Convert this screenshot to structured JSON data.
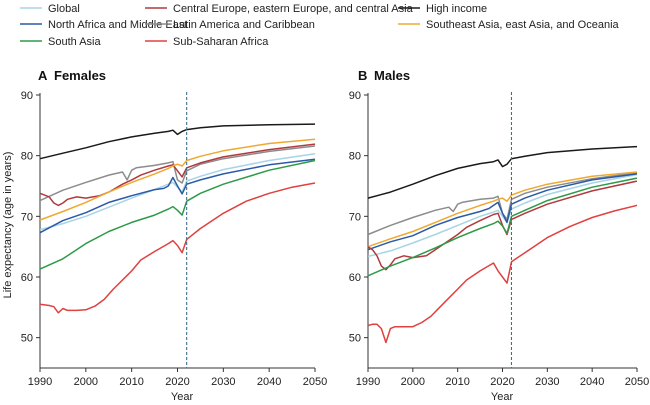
{
  "legend": [
    {
      "label": "Global",
      "color": "#a8d4e6"
    },
    {
      "label": "Central Europe, eastern Europe, and central Asia",
      "color": "#b03a3e"
    },
    {
      "label": "High income",
      "color": "#1a1a1a"
    },
    {
      "label": "North Africa and Middle East",
      "color": "#2b5aa6"
    },
    {
      "label": "Latin America and Caribbean",
      "color": "#8c8c8c"
    },
    {
      "label": "Southeast Asia, east Asia, and Oceania",
      "color": "#f0a830"
    },
    {
      "label": "South Asia",
      "color": "#2e9a48"
    },
    {
      "label": "Sub-Saharan Africa",
      "color": "#e04040"
    }
  ],
  "y_axis_label": "Life expectancy (age in years)",
  "x_axis_label": "Year",
  "chart_data": [
    {
      "type": "line",
      "panel_letter": "A",
      "title": "Females",
      "xlim": [
        1990,
        2050
      ],
      "ylim": [
        45,
        90
      ],
      "xticks": [
        1990,
        2000,
        2010,
        2020,
        2030,
        2040,
        2050
      ],
      "yticks": [
        50,
        60,
        70,
        80,
        90
      ],
      "forecast_start": 2022,
      "series": [
        {
          "name": "High income",
          "color": "#1a1a1a",
          "x": [
            1990,
            1995,
            2000,
            2005,
            2010,
            2015,
            2018,
            2019,
            2020,
            2021,
            2022,
            2025,
            2030,
            2040,
            2050
          ],
          "y": [
            79.5,
            80.4,
            81.3,
            82.3,
            83.1,
            83.7,
            84.0,
            84.2,
            83.5,
            84.0,
            84.3,
            84.6,
            84.9,
            85.1,
            85.2
          ]
        },
        {
          "name": "Latin America and Caribbean",
          "color": "#8c8c8c",
          "x": [
            1990,
            1995,
            2000,
            2005,
            2008,
            2009,
            2010,
            2011,
            2015,
            2018,
            2019,
            2020,
            2021,
            2022,
            2025,
            2030,
            2040,
            2050
          ],
          "y": [
            72.6,
            74.3,
            75.6,
            76.8,
            77.3,
            76.0,
            77.6,
            78.0,
            78.4,
            78.8,
            79.0,
            76.0,
            75.5,
            77.5,
            78.6,
            79.5,
            80.7,
            81.6
          ]
        },
        {
          "name": "Central Europe, eastern Europe, and central Asia",
          "color": "#b03a3e",
          "x": [
            1990,
            1991,
            1992,
            1993,
            1994,
            1995,
            1996,
            1998,
            2000,
            2003,
            2005,
            2008,
            2010,
            2012,
            2015,
            2018,
            2019,
            2020,
            2021,
            2022,
            2025,
            2030,
            2040,
            2050
          ],
          "y": [
            73.8,
            73.5,
            73.2,
            72.2,
            71.8,
            72.2,
            72.8,
            73.2,
            73.0,
            73.4,
            74.0,
            75.3,
            76.0,
            76.8,
            77.6,
            78.3,
            78.5,
            77.5,
            76.5,
            78.0,
            78.8,
            79.8,
            81.0,
            81.9
          ]
        },
        {
          "name": "Southeast Asia, east Asia, and Oceania",
          "color": "#f0a830",
          "x": [
            1990,
            1995,
            2000,
            2005,
            2010,
            2015,
            2018,
            2019,
            2020,
            2021,
            2022,
            2025,
            2030,
            2040,
            2050
          ],
          "y": [
            69.4,
            70.8,
            72.3,
            74.0,
            75.6,
            77.0,
            77.9,
            78.3,
            78.6,
            78.3,
            79.2,
            79.9,
            80.8,
            82.0,
            82.7
          ]
        },
        {
          "name": "Global",
          "color": "#a8d4e6",
          "x": [
            1990,
            1995,
            2000,
            2005,
            2010,
            2015,
            2018,
            2019,
            2020,
            2021,
            2022,
            2025,
            2030,
            2040,
            2050
          ],
          "y": [
            67.8,
            68.8,
            70.0,
            71.5,
            73.0,
            74.4,
            75.3,
            75.6,
            74.8,
            74.0,
            75.8,
            76.6,
            77.7,
            79.2,
            80.3
          ]
        },
        {
          "name": "North Africa and Middle East",
          "color": "#2b5aa6",
          "x": [
            1990,
            1995,
            2000,
            2005,
            2010,
            2015,
            2017,
            2018,
            2019,
            2020,
            2021,
            2022,
            2025,
            2030,
            2040,
            2050
          ],
          "y": [
            67.3,
            69.3,
            70.6,
            72.3,
            73.4,
            74.4,
            74.6,
            75.0,
            76.4,
            75.0,
            73.7,
            75.3,
            76.0,
            77.0,
            78.5,
            79.4
          ]
        },
        {
          "name": "South Asia",
          "color": "#2e9a48",
          "x": [
            1990,
            1995,
            2000,
            2005,
            2010,
            2015,
            2018,
            2019,
            2020,
            2021,
            2022,
            2025,
            2030,
            2040,
            2050
          ],
          "y": [
            61.3,
            63.0,
            65.5,
            67.5,
            69.0,
            70.2,
            71.2,
            71.6,
            71.0,
            70.2,
            72.5,
            73.8,
            75.3,
            77.6,
            79.2
          ]
        },
        {
          "name": "Sub-Saharan Africa",
          "color": "#e04040",
          "x": [
            1990,
            1992,
            1993,
            1994,
            1995,
            1996,
            1998,
            2000,
            2002,
            2004,
            2006,
            2008,
            2010,
            2012,
            2015,
            2018,
            2019,
            2020,
            2021,
            2022,
            2025,
            2030,
            2035,
            2040,
            2045,
            2050
          ],
          "y": [
            55.5,
            55.3,
            55.1,
            54.1,
            54.8,
            54.5,
            54.5,
            54.6,
            55.2,
            56.3,
            58.0,
            59.5,
            61.0,
            62.8,
            64.2,
            65.5,
            66.0,
            65.2,
            64.0,
            66.2,
            68.0,
            70.5,
            72.5,
            73.8,
            74.8,
            75.5
          ]
        }
      ]
    },
    {
      "type": "line",
      "panel_letter": "B",
      "title": "Males",
      "xlim": [
        1990,
        2050
      ],
      "ylim": [
        45,
        90
      ],
      "xticks": [
        1990,
        2000,
        2010,
        2020,
        2030,
        2040,
        2050
      ],
      "yticks": [
        50,
        60,
        70,
        80,
        90
      ],
      "forecast_start": 2022,
      "series": [
        {
          "name": "High income",
          "color": "#1a1a1a",
          "x": [
            1990,
            1995,
            2000,
            2005,
            2010,
            2015,
            2018,
            2019,
            2020,
            2021,
            2022,
            2025,
            2030,
            2040,
            2050
          ],
          "y": [
            73.0,
            74.0,
            75.3,
            76.7,
            77.9,
            78.7,
            79.0,
            79.3,
            78.2,
            78.6,
            79.5,
            79.9,
            80.5,
            81.1,
            81.5
          ]
        },
        {
          "name": "Latin America and Caribbean",
          "color": "#8c8c8c",
          "x": [
            1990,
            1995,
            2000,
            2005,
            2008,
            2009,
            2010,
            2011,
            2015,
            2018,
            2019,
            2020,
            2021,
            2022,
            2025,
            2030,
            2040,
            2050
          ],
          "y": [
            67.0,
            68.5,
            69.8,
            71.0,
            71.5,
            70.8,
            72.0,
            72.3,
            72.8,
            73.0,
            73.3,
            70.5,
            69.5,
            72.8,
            73.8,
            74.8,
            76.2,
            77.2
          ]
        },
        {
          "name": "Southeast Asia, east Asia, and Oceania",
          "color": "#f0a830",
          "x": [
            1990,
            1995,
            2000,
            2005,
            2010,
            2015,
            2018,
            2019,
            2020,
            2021,
            2022,
            2025,
            2030,
            2040,
            2050
          ],
          "y": [
            65.0,
            66.3,
            67.5,
            69.0,
            70.5,
            71.8,
            72.5,
            72.8,
            73.0,
            72.5,
            73.5,
            74.3,
            75.3,
            76.6,
            77.3
          ]
        },
        {
          "name": "Global",
          "color": "#a8d4e6",
          "x": [
            1990,
            1995,
            2000,
            2005,
            2010,
            2015,
            2018,
            2019,
            2020,
            2021,
            2022,
            2025,
            2030,
            2040,
            2050
          ],
          "y": [
            63.4,
            64.3,
            65.6,
            67.0,
            68.5,
            70.0,
            70.7,
            71.0,
            70.0,
            69.0,
            71.2,
            72.2,
            73.6,
            75.5,
            76.9
          ]
        },
        {
          "name": "North Africa and Middle East",
          "color": "#2b5aa6",
          "x": [
            1990,
            1995,
            2000,
            2005,
            2010,
            2015,
            2017,
            2018,
            2019,
            2020,
            2021,
            2022,
            2025,
            2030,
            2040,
            2050
          ],
          "y": [
            64.5,
            65.8,
            66.8,
            68.5,
            69.8,
            70.8,
            71.3,
            71.8,
            72.3,
            70.5,
            69.0,
            72.0,
            73.0,
            74.3,
            76.0,
            77.0
          ]
        },
        {
          "name": "Central Europe, eastern Europe, and central Asia",
          "color": "#b03a3e",
          "x": [
            1990,
            1991,
            1992,
            1993,
            1994,
            1995,
            1996,
            1998,
            2000,
            2003,
            2005,
            2008,
            2010,
            2012,
            2015,
            2018,
            2019,
            2020,
            2021,
            2022,
            2025,
            2030,
            2040,
            2050
          ],
          "y": [
            65.0,
            64.5,
            63.5,
            61.8,
            61.2,
            62.0,
            63.0,
            63.5,
            63.2,
            63.5,
            64.5,
            66.0,
            67.0,
            68.2,
            69.3,
            70.3,
            70.5,
            68.5,
            67.0,
            69.5,
            70.5,
            72.0,
            74.2,
            75.8
          ]
        },
        {
          "name": "South Asia",
          "color": "#2e9a48",
          "x": [
            1990,
            1995,
            2000,
            2005,
            2010,
            2015,
            2018,
            2019,
            2020,
            2021,
            2022,
            2025,
            2030,
            2040,
            2050
          ],
          "y": [
            60.2,
            61.8,
            63.2,
            64.8,
            66.5,
            68.0,
            68.8,
            69.2,
            68.4,
            67.2,
            70.0,
            71.0,
            72.6,
            74.8,
            76.3
          ]
        },
        {
          "name": "Sub-Saharan Africa",
          "color": "#e04040",
          "x": [
            1990,
            1991,
            1992,
            1993,
            1994,
            1995,
            1996,
            1998,
            2000,
            2002,
            2004,
            2006,
            2008,
            2010,
            2012,
            2015,
            2018,
            2019,
            2020,
            2021,
            2022,
            2025,
            2030,
            2035,
            2040,
            2045,
            2050
          ],
          "y": [
            52.0,
            52.2,
            52.2,
            51.5,
            49.2,
            51.5,
            51.8,
            51.8,
            51.8,
            52.5,
            53.5,
            55.0,
            56.5,
            58.0,
            59.5,
            61.0,
            62.3,
            61.0,
            60.0,
            59.0,
            62.5,
            64.0,
            66.5,
            68.3,
            69.8,
            70.9,
            71.8
          ]
        }
      ]
    }
  ]
}
